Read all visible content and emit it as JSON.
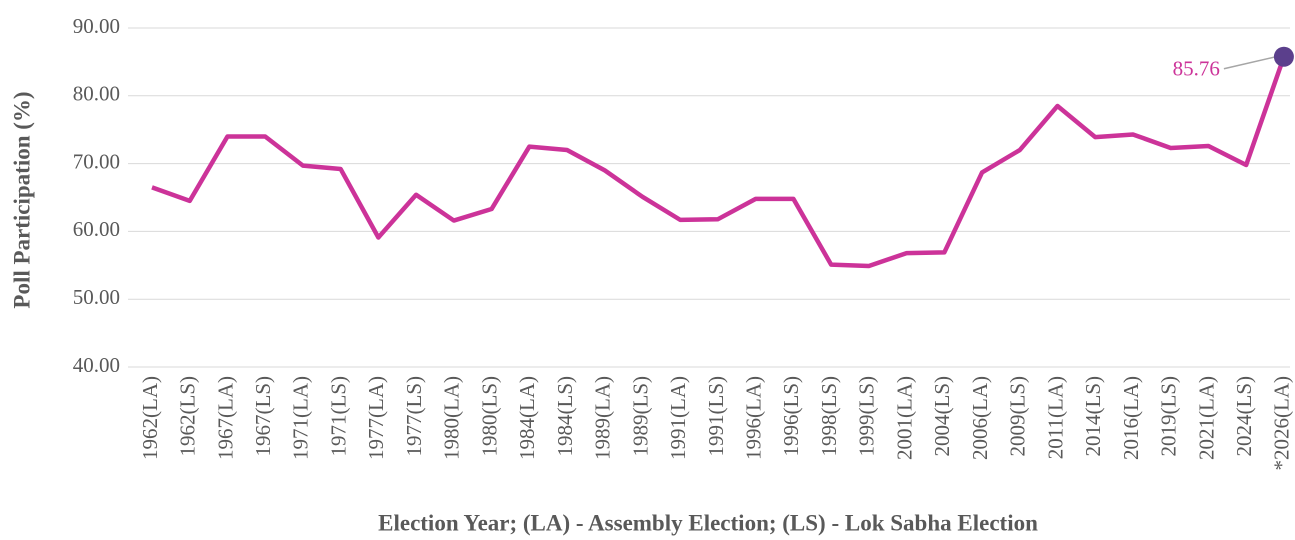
{
  "chart_data": {
    "type": "line",
    "xlabel": "Election Year; (LA) - Assembly Election; (LS) - Lok Sabha Election",
    "ylabel": "Poll Participation (%)",
    "categories": [
      "1962(LA)",
      "1962(LS)",
      "1967(LA)",
      "1967(LS)",
      "1971(LA)",
      "1971(LS)",
      "1977(LA)",
      "1977(LS)",
      "1980(LA)",
      "1980(LS)",
      "1984(LA)",
      "1984(LS)",
      "1989(LA)",
      "1989(LS)",
      "1991(LA)",
      "1991(LS)",
      "1996(LA)",
      "1996(LS)",
      "1998(LS)",
      "1999(LS)",
      "2001(LA)",
      "2004(LS)",
      "2006(LA)",
      "2009(LS)",
      "2011(LA)",
      "2014(LS)",
      "2016(LA)",
      "2019(LS)",
      "2021(LA)",
      "2024(LS)",
      "*2026(LA)"
    ],
    "series": [
      {
        "name": "Poll Participation (%)",
        "color": "#cc3399",
        "values": [
          66.5,
          64.5,
          74.0,
          74.0,
          69.7,
          69.2,
          59.1,
          65.4,
          61.6,
          63.3,
          72.5,
          72.0,
          69.0,
          65.1,
          61.7,
          61.8,
          64.8,
          64.8,
          55.1,
          54.9,
          56.8,
          56.9,
          68.7,
          72.0,
          78.5,
          73.9,
          74.3,
          72.3,
          72.6,
          69.8,
          85.76
        ]
      }
    ],
    "highlight_color": "#5b3f8c",
    "ylim": [
      40,
      90
    ],
    "yticks": [
      {
        "value": 40,
        "label": "40.00"
      },
      {
        "value": 50,
        "label": "50.00"
      },
      {
        "value": 60,
        "label": "60.00"
      },
      {
        "value": 70,
        "label": "70.00"
      },
      {
        "value": 80,
        "label": "80.00"
      },
      {
        "value": 90,
        "label": "90.00"
      }
    ],
    "grid": true
  }
}
